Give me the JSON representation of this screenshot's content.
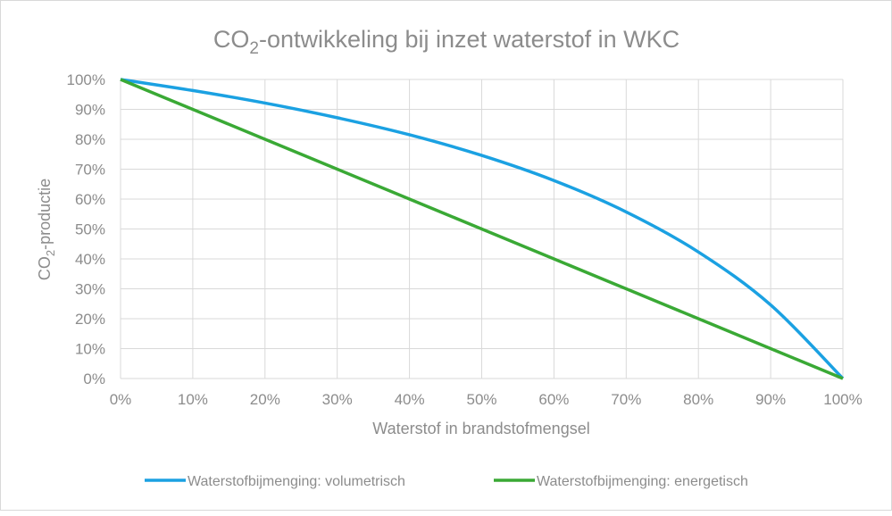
{
  "chart_data": {
    "type": "line",
    "title": {
      "prefix": "CO",
      "sub": "2",
      "suffix": "-ontwikkeling bij inzet waterstof in WKC"
    },
    "xlabel": "Waterstof in brandstofmengsel",
    "ylabel": {
      "prefix": "CO",
      "sub": "2",
      "suffix": "-productie"
    },
    "xlim": [
      0,
      100
    ],
    "ylim": [
      0,
      100
    ],
    "x_ticks": [
      "0%",
      "10%",
      "20%",
      "30%",
      "40%",
      "50%",
      "60%",
      "70%",
      "80%",
      "90%",
      "100%"
    ],
    "y_ticks": [
      "0%",
      "10%",
      "20%",
      "30%",
      "40%",
      "50%",
      "60%",
      "70%",
      "80%",
      "90%",
      "100%"
    ],
    "grid": true,
    "legend_position": "bottom",
    "x": [
      0,
      10,
      20,
      30,
      40,
      50,
      60,
      70,
      80,
      90,
      100
    ],
    "series": [
      {
        "name": "Waterstofbijmenging: volumetrisch",
        "color": "#1ba1e2",
        "values": [
          100,
          96.3,
          92.1,
          87.2,
          81.5,
          74.6,
          66.2,
          55.7,
          42.3,
          24.6,
          0
        ]
      },
      {
        "name": "Waterstofbijmenging: energetisch",
        "color": "#3aa935",
        "values": [
          100,
          90,
          80,
          70,
          60,
          50,
          40,
          30,
          20,
          10,
          0
        ]
      }
    ]
  }
}
